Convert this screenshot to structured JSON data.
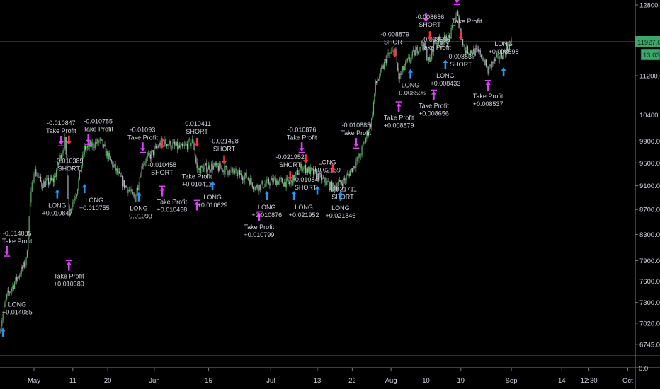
{
  "chart_data": {
    "type": "candlestick",
    "colors": {
      "background": "#000000",
      "up": "#5fae6b",
      "down": "#b2b5be",
      "long": "#2196f3",
      "short": "#f23645",
      "take_profit": "#e040fb",
      "last_price_bg": "#3fa56a",
      "text": "#d1d4dc"
    },
    "y_axis": {
      "scale": "log",
      "range": [
        6745,
        12800
      ],
      "ticks": [
        "12800.0",
        "11200.0",
        "10400.0",
        "9900.0",
        "9500.0",
        "9100.0",
        "8700.0",
        "8300.0",
        "7900.0",
        "7600.0",
        "7300.0",
        "7020.0",
        "6745.0"
      ]
    },
    "x_axis": {
      "ticks": [
        {
          "label": "May",
          "date": "2020-05-01"
        },
        {
          "label": "11",
          "date": "2020-05-11"
        },
        {
          "label": "20",
          "date": "2020-05-20"
        },
        {
          "label": "Jun",
          "date": "2020-06-01"
        },
        {
          "label": "15",
          "date": "2020-06-15"
        },
        {
          "label": "Jul",
          "date": "2020-07-01"
        },
        {
          "label": "13",
          "date": "2020-07-13"
        },
        {
          "label": "22",
          "date": "2020-07-22"
        },
        {
          "label": "Aug",
          "date": "2020-08-01"
        },
        {
          "label": "10",
          "date": "2020-08-10"
        },
        {
          "label": "19",
          "date": "2020-08-19"
        },
        {
          "label": "Sep",
          "date": "2020-09-01"
        },
        {
          "label": "14",
          "date": "2020-09-14"
        },
        {
          "label": "12:30",
          "date": "2020-09-21"
        },
        {
          "label": "Oct",
          "date": "2020-10-01"
        }
      ]
    },
    "last_price": "11927.0",
    "countdown": "13:03",
    "lower_pane_value": "0.0",
    "price_path": [
      [
        "2020-04-22",
        6900
      ],
      [
        "2020-04-24",
        7380
      ],
      [
        "2020-04-27",
        7680
      ],
      [
        "2020-04-29",
        7890
      ],
      [
        "2020-04-30",
        8800
      ],
      [
        "2020-05-01",
        9380
      ],
      [
        "2020-05-03",
        9130
      ],
      [
        "2020-05-06",
        9190
      ],
      [
        "2020-05-09",
        9900
      ],
      [
        "2020-05-10",
        8650
      ],
      [
        "2020-05-12",
        9010
      ],
      [
        "2020-05-14",
        9760
      ],
      [
        "2020-05-18",
        9900
      ],
      [
        "2020-05-21",
        9500
      ],
      [
        "2020-05-24",
        9130
      ],
      [
        "2020-05-27",
        8890
      ],
      [
        "2020-05-29",
        9500
      ],
      [
        "2020-05-31",
        9630
      ],
      [
        "2020-06-03",
        9900
      ],
      [
        "2020-06-08",
        9760
      ],
      [
        "2020-06-11",
        9900
      ],
      [
        "2020-06-12",
        9380
      ],
      [
        "2020-06-16",
        9440
      ],
      [
        "2020-06-19",
        9380
      ],
      [
        "2020-06-25",
        9250
      ],
      [
        "2020-06-27",
        9070
      ],
      [
        "2020-07-02",
        9190
      ],
      [
        "2020-07-06",
        9130
      ],
      [
        "2020-07-09",
        9440
      ],
      [
        "2020-07-12",
        9320
      ],
      [
        "2020-07-17",
        9070
      ],
      [
        "2020-07-20",
        9190
      ],
      [
        "2020-07-24",
        9630
      ],
      [
        "2020-07-27",
        10290
      ],
      [
        "2020-07-28",
        11000
      ],
      [
        "2020-07-31",
        11610
      ],
      [
        "2020-08-02",
        11760
      ],
      [
        "2020-08-03",
        11150
      ],
      [
        "2020-08-05",
        11460
      ],
      [
        "2020-08-09",
        11930
      ],
      [
        "2020-08-11",
        11460
      ],
      [
        "2020-08-12",
        11930
      ],
      [
        "2020-08-16",
        12010
      ],
      [
        "2020-08-18",
        12580
      ],
      [
        "2020-08-20",
        11760
      ],
      [
        "2020-08-24",
        11690
      ],
      [
        "2020-08-26",
        11300
      ],
      [
        "2020-08-27",
        11460
      ],
      [
        "2020-08-30",
        11690
      ],
      [
        "2020-09-01",
        11927
      ]
    ],
    "signals": [
      {
        "type": "long",
        "date": "2020-04-23",
        "price": 6960,
        "lines": [
          "LONG",
          "+0.014085"
        ]
      },
      {
        "type": "take-profit-long",
        "date": "2020-04-24",
        "price": 7960,
        "lines": [
          "-0.014085",
          "Take Profit"
        ]
      },
      {
        "type": "long",
        "date": "2020-05-07",
        "price": 9040,
        "lines": [
          "LONG",
          "+0.010847"
        ]
      },
      {
        "type": "take-profit-long",
        "date": "2020-05-08",
        "price": 9800,
        "lines": [
          "-0.010847",
          "Take Profit"
        ]
      },
      {
        "type": "short",
        "date": "2020-05-10",
        "price": 9830,
        "lines": [
          "-0.010389",
          "SHORT"
        ]
      },
      {
        "type": "take-profit-short",
        "date": "2020-05-10",
        "price": 7910,
        "lines": [
          "Take Profit",
          "+0.010389"
        ]
      },
      {
        "type": "long",
        "date": "2020-05-14",
        "price": 9130,
        "lines": [
          "LONG",
          "+0.010755"
        ]
      },
      {
        "type": "take-profit-long",
        "date": "2020-05-15",
        "price": 9830,
        "lines": [
          "-0.010755",
          "Take Profit"
        ]
      },
      {
        "type": "long",
        "date": "2020-05-28",
        "price": 8990,
        "lines": [
          "LONG",
          "+0.01093"
        ]
      },
      {
        "type": "take-profit-long",
        "date": "2020-05-29",
        "price": 9680,
        "lines": [
          "-0.01093",
          "Take Profit"
        ]
      },
      {
        "type": "short",
        "date": "2020-06-03",
        "price": 9760,
        "lines": [
          "-0.010458",
          "SHORT"
        ]
      },
      {
        "type": "take-profit-short",
        "date": "2020-06-03",
        "price": 9100,
        "lines": [
          "Take Profit",
          "+0.010458"
        ]
      },
      {
        "type": "short",
        "date": "2020-06-12",
        "price": 9790,
        "lines": [
          "-0.010411",
          "SHORT"
        ]
      },
      {
        "type": "take-profit-short",
        "date": "2020-06-12",
        "price": 8860,
        "lines": [
          "Take Profit",
          "+0.010411"
        ]
      },
      {
        "type": "long",
        "date": "2020-06-16",
        "price": 9180,
        "lines": [
          "LONG",
          "+0.010629"
        ]
      },
      {
        "type": "short",
        "date": "2020-06-19",
        "price": 9470,
        "lines": [
          "-0.021428",
          "SHORT"
        ]
      },
      {
        "type": "take-profit-short",
        "date": "2020-06-28",
        "price": 8680,
        "lines": [
          "Take Profit",
          "+0.010799"
        ]
      },
      {
        "type": "long",
        "date": "2020-06-30",
        "price": 9010,
        "lines": [
          "LONG",
          "+0.010876"
        ]
      },
      {
        "type": "short",
        "date": "2020-07-06",
        "price": 9190,
        "lines": [
          "-0.021952",
          "SHORT"
        ]
      },
      {
        "type": "long",
        "date": "2020-07-07",
        "price": 9010,
        "lines": [
          "LONG",
          "+0.021952"
        ]
      },
      {
        "type": "take-profit-long",
        "date": "2020-07-09",
        "price": 9680,
        "lines": [
          "-0.010876",
          "Take Profit"
        ]
      },
      {
        "type": "short",
        "date": "2020-07-10",
        "price": 9490,
        "lines": [
          "-0.01084",
          "SHORT"
        ]
      },
      {
        "type": "long",
        "date": "2020-07-13",
        "price": 9100,
        "lines": [
          "LONG",
          "+0.02159"
        ]
      },
      {
        "type": "short",
        "date": "2020-07-17",
        "price": 9320,
        "lines": [
          "-0.021711",
          "SHORT"
        ]
      },
      {
        "type": "long",
        "date": "2020-07-19",
        "price": 9000,
        "lines": [
          "LONG",
          "+0.021846"
        ]
      },
      {
        "type": "take-profit-long",
        "date": "2020-07-23",
        "price": 9760,
        "lines": [
          "-0.010885",
          "Take Profit"
        ]
      },
      {
        "type": "short",
        "date": "2020-08-02",
        "price": 11590,
        "lines": [
          "-0.008879",
          "SHORT"
        ]
      },
      {
        "type": "take-profit-short",
        "date": "2020-08-03",
        "price": 10670,
        "lines": [
          "Take Profit",
          "+0.008879"
        ]
      },
      {
        "type": "long",
        "date": "2020-08-06",
        "price": 11340,
        "lines": [
          "LONG",
          "+0.008596"
        ]
      },
      {
        "type": "take-profit-long",
        "date": "2020-08-10",
        "price": 12360,
        "lines": [
          "-0.008596",
          "Take Profit"
        ]
      },
      {
        "type": "short",
        "date": "2020-08-11",
        "price": 11970,
        "lines": [
          "-0.008656",
          "SHORT"
        ]
      },
      {
        "type": "take-profit-short",
        "date": "2020-08-12",
        "price": 10910,
        "lines": [
          "Take Profit",
          "+0.008656"
        ]
      },
      {
        "type": "long",
        "date": "2020-08-15",
        "price": 11550,
        "lines": [
          "LONG",
          "+0.008433"
        ]
      },
      {
        "type": "take-profit-long",
        "date": "2020-08-18",
        "price": 12800,
        "lines": [
          "Take Profit"
        ]
      },
      {
        "type": "short",
        "date": "2020-08-19",
        "price": 11970,
        "lines": [
          "-0.008537",
          "SHORT"
        ]
      },
      {
        "type": "take-profit-short",
        "date": "2020-08-26",
        "price": 11110,
        "lines": [
          "Take Profit",
          "+0.008537"
        ]
      },
      {
        "type": "long",
        "date": "2020-08-30",
        "price": 11380,
        "lines": [
          "LONG",
          "+0.008598"
        ]
      }
    ]
  }
}
